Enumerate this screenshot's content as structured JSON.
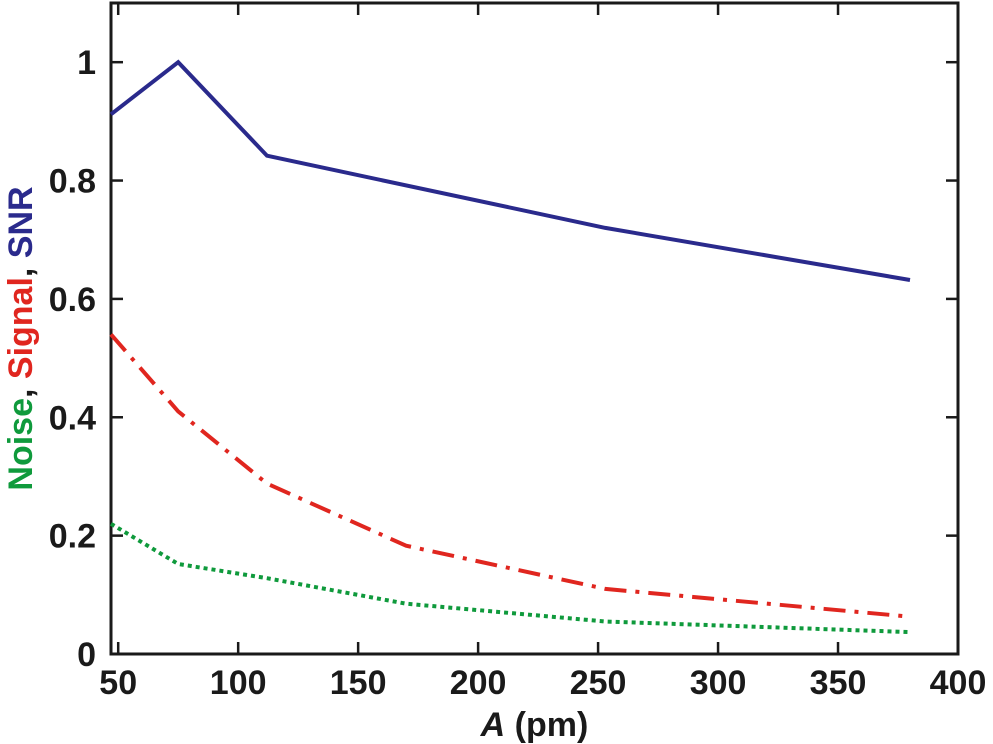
{
  "chart_data": {
    "type": "line",
    "xlabel": {
      "symbol": "A",
      "unit": " (pm)"
    },
    "ylabel_parts": [
      {
        "text": "Noise",
        "color": "#0f9a3c"
      },
      {
        "text": ", ",
        "color": "#1a1a1a"
      },
      {
        "text": "Signal",
        "color": "#e0261f"
      },
      {
        "text": ", ",
        "color": "#1a1a1a"
      },
      {
        "text": "SNR",
        "color": "#2a2a8c"
      }
    ],
    "xlim": [
      47,
      400
    ],
    "ylim": [
      0,
      1.1
    ],
    "xticks": [
      50,
      100,
      150,
      200,
      250,
      300,
      350,
      400
    ],
    "yticks": [
      0,
      0.2,
      0.4,
      0.6,
      0.8,
      1
    ],
    "ytick_labels": [
      "0",
      "0.2",
      "0.4",
      "0.6",
      "0.8",
      "1"
    ],
    "grid": false,
    "legend": "none",
    "series": [
      {
        "key": "snr",
        "color": "#2a2a8c",
        "style": "solid",
        "x": [
          47,
          75,
          112,
          253,
          380
        ],
        "y": [
          0.912,
          1.0,
          0.842,
          0.72,
          0.632
        ]
      },
      {
        "key": "signal",
        "color": "#e0261f",
        "style": "dashdot",
        "x": [
          47,
          75,
          112,
          170,
          253,
          380
        ],
        "y": [
          0.54,
          0.41,
          0.288,
          0.183,
          0.11,
          0.063
        ]
      },
      {
        "key": "noise",
        "color": "#0f9a3c",
        "style": "dotted",
        "x": [
          47,
          75,
          112,
          170,
          253,
          380
        ],
        "y": [
          0.22,
          0.152,
          0.128,
          0.085,
          0.055,
          0.037
        ]
      }
    ]
  }
}
